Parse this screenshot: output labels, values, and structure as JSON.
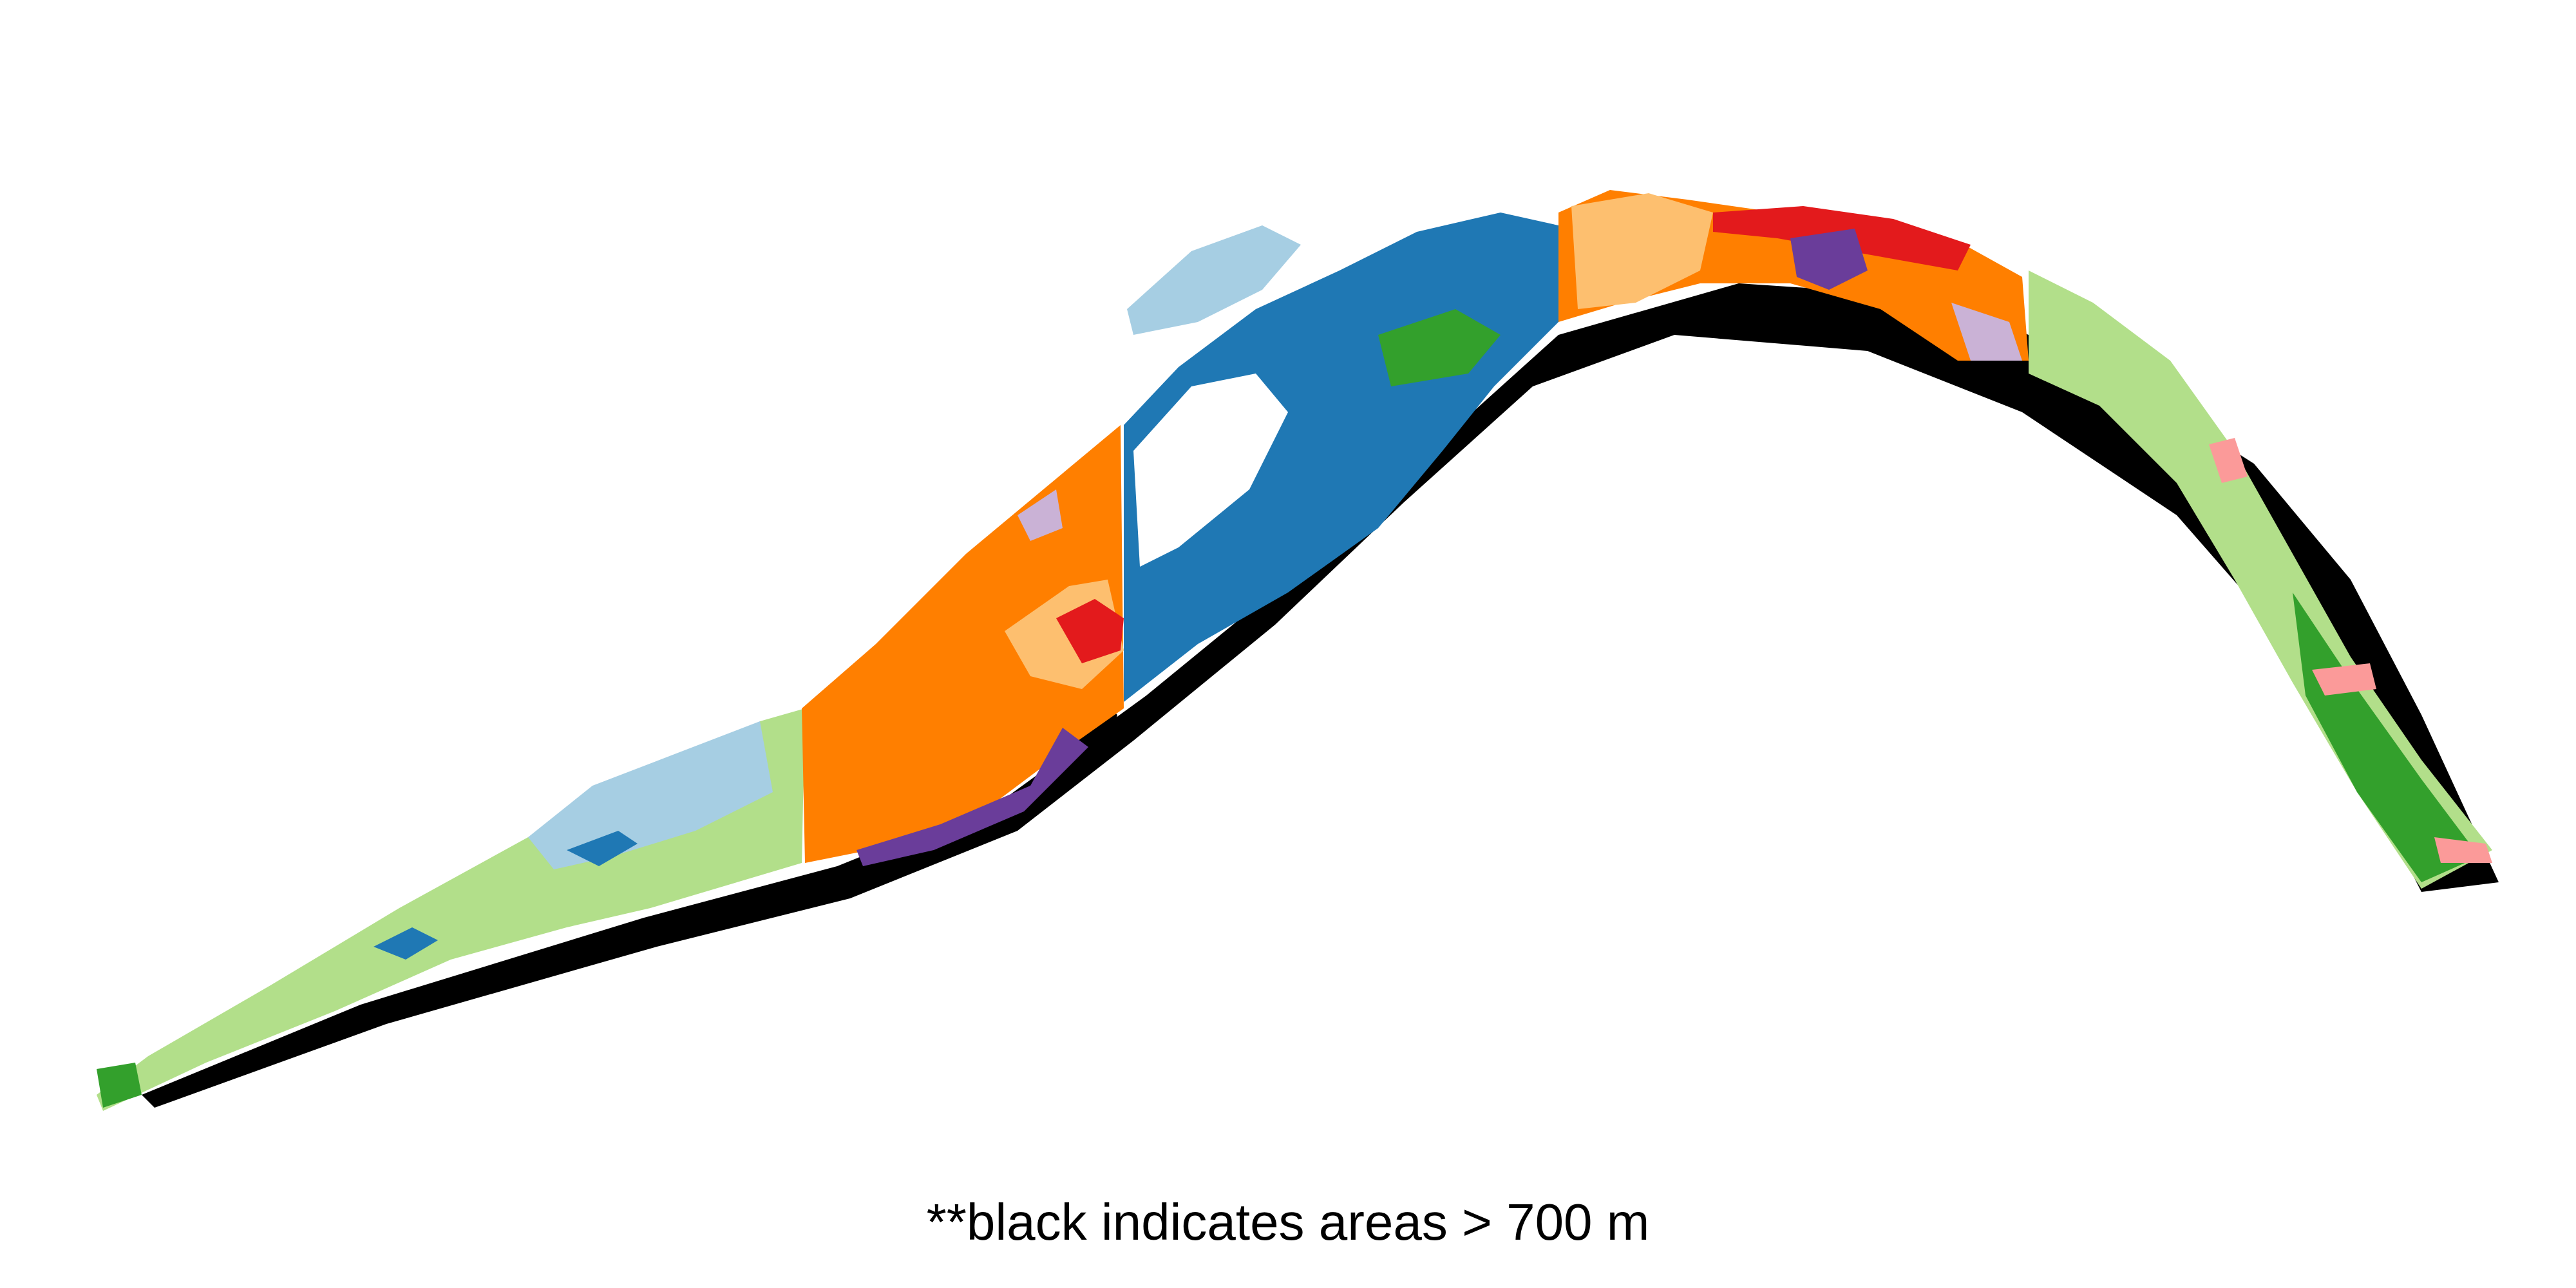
{
  "caption": "**black indicates areas > 700 m",
  "palette": {
    "light_blue": "#a6cee3",
    "blue": "#1f78b4",
    "light_green": "#b2df8a",
    "green": "#33a02c",
    "pink": "#fb9a99",
    "red": "#e31a1c",
    "light_orange": "#fdbf6f",
    "orange": "#ff7f00",
    "lavender": "#cab2d6",
    "purple": "#6a3d9a",
    "black": "#000000"
  }
}
